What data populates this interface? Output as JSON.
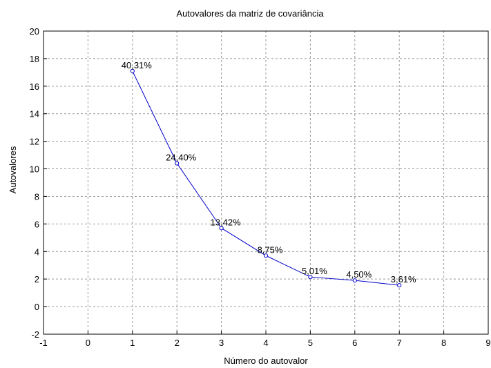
{
  "chart_data": {
    "type": "line",
    "title": "Autovalores da matriz de covariância",
    "xlabel": "Número do autovalor",
    "ylabel": "Autovalores",
    "xlim": [
      -1,
      9
    ],
    "ylim": [
      -2,
      20
    ],
    "xticks": [
      -1,
      0,
      1,
      2,
      3,
      4,
      5,
      6,
      7,
      8,
      9
    ],
    "yticks": [
      -2,
      0,
      2,
      4,
      6,
      8,
      10,
      12,
      14,
      16,
      18,
      20
    ],
    "grid": true,
    "legend": "none",
    "series": [
      {
        "color": "#0000cc",
        "x": [
          1,
          2,
          3,
          4,
          5,
          6,
          7
        ],
        "y": [
          17.1,
          10.4,
          5.7,
          3.7,
          2.15,
          1.9,
          1.55
        ],
        "labels": [
          "40,31%",
          "24,40%",
          "13,42%",
          "8,75%",
          "5,01%",
          "4,50%",
          "3,61%"
        ]
      }
    ]
  }
}
